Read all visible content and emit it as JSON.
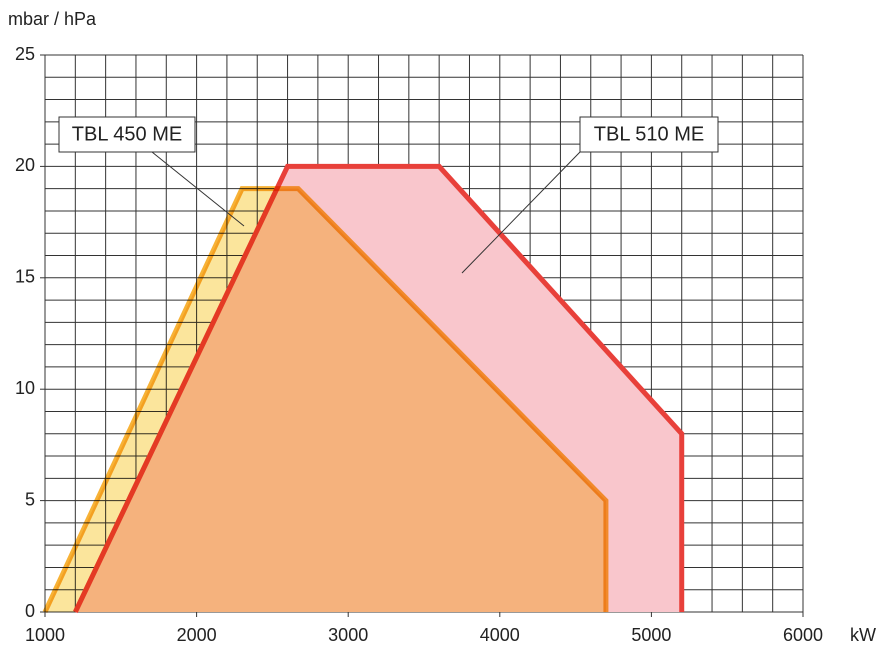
{
  "chart_data": {
    "type": "area",
    "y_label": "mbar / hPa",
    "x_label": "kW",
    "xlim": [
      1000,
      6000
    ],
    "ylim": [
      0,
      25
    ],
    "xticks": [
      1000,
      2000,
      3000,
      4000,
      5000,
      6000
    ],
    "yticks": [
      0,
      5,
      10,
      15,
      20,
      25
    ],
    "x_minor_grid": [
      1000,
      1200,
      1400,
      1600,
      1800,
      2000,
      2200,
      2400,
      2600,
      2800,
      3000,
      3200,
      3400,
      3600,
      3800,
      4000,
      4200,
      4400,
      4600,
      4800,
      5000,
      5200,
      5400,
      5600,
      5800,
      6000
    ],
    "y_minor_grid": [
      0,
      1,
      2,
      3,
      4,
      5,
      6,
      7,
      8,
      9,
      10,
      11,
      12,
      13,
      14,
      15,
      16,
      17,
      18,
      19,
      20,
      21,
      22,
      23,
      24,
      25
    ],
    "grid": true,
    "series": [
      {
        "name": "TBL 510 ME",
        "color": "#e8403a",
        "fill": "#f9c6cc",
        "x": [
          1200,
          2600,
          3600,
          5200,
          5200
        ],
        "values": [
          0,
          20,
          20,
          8,
          0
        ]
      },
      {
        "name": "TBL 450 ME",
        "color": "#f7b236",
        "fill": "#fbe59c",
        "x": [
          1000,
          2300,
          2670,
          4700,
          4700
        ],
        "values": [
          0,
          19,
          19,
          5,
          0
        ]
      }
    ]
  }
}
